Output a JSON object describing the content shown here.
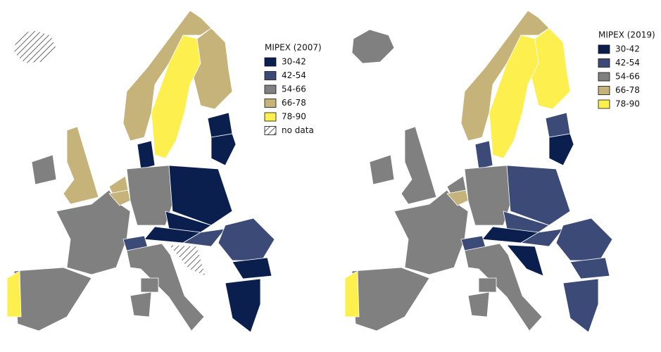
{
  "maps": [
    {
      "legend_title": "MIPEX (2007)",
      "legend": [
        {
          "label": "30-42",
          "color": "#0b1f4f"
        },
        {
          "label": "42-54",
          "color": "#3c4a78"
        },
        {
          "label": "54-66",
          "color": "#808080"
        },
        {
          "label": "66-78",
          "color": "#c5b37a"
        },
        {
          "label": "78-90",
          "color": "#fdef4d"
        },
        {
          "label": "no data",
          "color": "#ffffff",
          "hatched": true
        }
      ]
    },
    {
      "legend_title": "MIPEX (2019)",
      "legend": [
        {
          "label": "30-42",
          "color": "#0b1f4f"
        },
        {
          "label": "42-54",
          "color": "#3c4a78"
        },
        {
          "label": "54-66",
          "color": "#808080"
        },
        {
          "label": "66-78",
          "color": "#c5b37a"
        },
        {
          "label": "78-90",
          "color": "#fdef4d"
        }
      ]
    }
  ]
}
